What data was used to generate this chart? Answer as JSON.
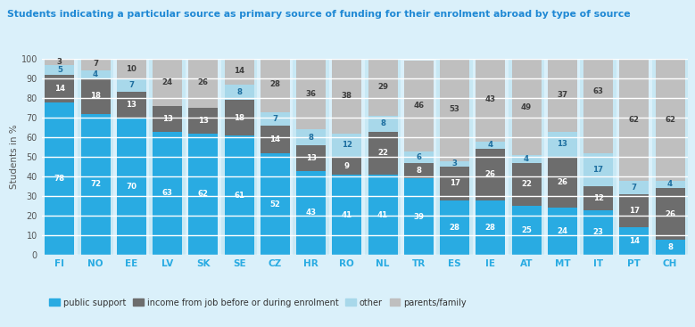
{
  "title": "Students indicating a particular source as primary source of funding for their enrolment abroad by type of source",
  "ylabel": "Students in %",
  "categories": [
    "FI",
    "NO",
    "EE",
    "LV",
    "SK",
    "SE",
    "CZ",
    "HR",
    "RO",
    "NL",
    "TR",
    "ES",
    "IE",
    "AT",
    "MT",
    "IT",
    "PT",
    "CH"
  ],
  "public_support": [
    78,
    72,
    70,
    63,
    62,
    61,
    52,
    43,
    41,
    41,
    39,
    28,
    28,
    25,
    24,
    23,
    14,
    8
  ],
  "income_from_job": [
    14,
    18,
    13,
    13,
    13,
    18,
    14,
    13,
    9,
    22,
    8,
    17,
    26,
    22,
    26,
    12,
    17,
    26
  ],
  "other": [
    5,
    4,
    7,
    0,
    0,
    8,
    7,
    8,
    12,
    8,
    6,
    3,
    4,
    4,
    13,
    17,
    7,
    4
  ],
  "parents_family": [
    3,
    7,
    10,
    24,
    26,
    14,
    28,
    36,
    38,
    29,
    46,
    53,
    43,
    49,
    37,
    63,
    62,
    62
  ],
  "color_public": "#29ABE2",
  "color_income": "#6D6D6D",
  "color_other": "#A8D8EA",
  "color_parents": "#BFBFBF",
  "color_bg": "#DAF0FA",
  "color_col_alt": "#C8E8F4",
  "color_title": "#1E88D4",
  "ylim": [
    0,
    100
  ],
  "yticks": [
    0,
    10,
    20,
    30,
    40,
    50,
    60,
    70,
    80,
    90,
    100
  ],
  "legend_labels": [
    "public support",
    "income from job before or during enrolment",
    "other",
    "parents/family"
  ]
}
